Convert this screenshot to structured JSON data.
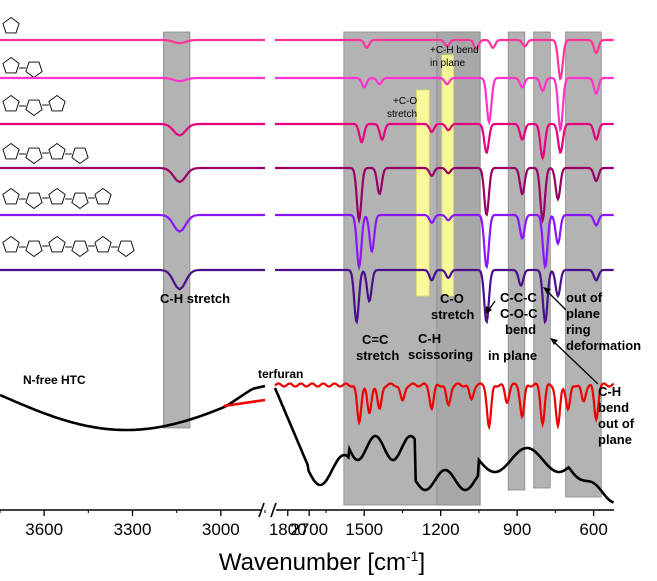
{
  "chart_data": {
    "type": "line",
    "xlabel": "Wavenumber [cm",
    "xlabel_sup": "-1",
    "xlabel_suffix": "]",
    "x_reversed": true,
    "x_axis_break": true,
    "x_segments": [
      {
        "range": [
          3750,
          2850
        ],
        "ticks": [
          3600,
          3300,
          3000,
          2700
        ]
      },
      {
        "range": [
          1850,
          520
        ],
        "ticks": [
          1800,
          1500,
          1200,
          900,
          600
        ]
      }
    ],
    "tick_labels": [
      "3600",
      "3300",
      "3000",
      "2700",
      "1800",
      "1500",
      "1200",
      "900",
      "600"
    ],
    "highlight_bands": [
      {
        "x": [
          3195,
          3105
        ],
        "color": "#a6a6a6",
        "label": "C-H stretch"
      },
      {
        "x": [
          1580,
          1045
        ],
        "color": "#a6a6a6",
        "label": "C=C stretch"
      },
      {
        "x": [
          1215,
          1045
        ],
        "color": "#a6a6a6",
        "label": "C-H scissoring"
      },
      {
        "x": [
          935,
          870
        ],
        "color": "#a6a6a6",
        "label": "C-C-C C-O-C bend in plane"
      },
      {
        "x": [
          835,
          770
        ],
        "color": "#a6a6a6",
        "label": "out of plane ring deformation"
      },
      {
        "x": [
          710,
          570
        ],
        "color": "#a6a6a6",
        "label": "C-H bend out of plane"
      },
      {
        "x": [
          1295,
          1245
        ],
        "color": "#ffff99",
        "label": "+C-O stretch"
      },
      {
        "x": [
          1195,
          1150
        ],
        "color": "#ffff99",
        "label": "+C-H bend in plane"
      }
    ],
    "annotations": {
      "ch_stretch": "C-H stretch",
      "cc_stretch_1": "C=C",
      "cc_stretch_2": "stretch",
      "co_stretch_1": "C-O",
      "co_stretch_2": "stretch",
      "ch_sciss_1": "C-H",
      "ch_sciss_2": "scissoring",
      "ccc_1": "C-C-C",
      "ccc_2": "C-O-C",
      "ccc_3": "bend",
      "ccc_4": "in plane",
      "oop_1": "out of",
      "oop_2": "plane",
      "oop_3": "ring",
      "oop_4": "deformation",
      "chb_1": "C-H",
      "chb_2": "bend",
      "chb_3": "out of",
      "chb_4": "plane",
      "plus_co_1": "+C-O",
      "plus_co_2": "stretch",
      "plus_ch_1": "+C-H bend",
      "plus_ch_2": "in plane"
    },
    "series": [
      {
        "id": "s1",
        "rings": 1,
        "color": "#ff3399",
        "peaks": [
          [
            1490,
            0.15
          ],
          [
            1175,
            0.12
          ],
          [
            1060,
            0.18
          ],
          [
            995,
            0.15
          ],
          [
            870,
            0.12
          ],
          [
            730,
            0.75
          ],
          [
            590,
            0.25
          ]
        ]
      },
      {
        "id": "s2",
        "rings": 2,
        "color": "#ff33cc",
        "peaks": [
          [
            1500,
            0.18
          ],
          [
            1440,
            0.12
          ],
          [
            1175,
            0.12
          ],
          [
            1010,
            0.85
          ],
          [
            880,
            0.18
          ],
          [
            800,
            0.25
          ],
          [
            730,
            1.0
          ],
          [
            590,
            0.3
          ]
        ]
      },
      {
        "id": "s3",
        "rings": 3,
        "color": "#e6007e",
        "peaks": [
          [
            1510,
            0.35
          ],
          [
            1430,
            0.3
          ],
          [
            1235,
            0.15
          ],
          [
            1170,
            0.12
          ],
          [
            1020,
            0.55
          ],
          [
            880,
            0.3
          ],
          [
            800,
            0.65
          ],
          [
            730,
            0.55
          ],
          [
            590,
            0.3
          ]
        ]
      },
      {
        "id": "s4",
        "rings": 4,
        "color": "#990066",
        "peaks": [
          [
            1520,
            1.0
          ],
          [
            1440,
            0.5
          ],
          [
            1235,
            0.15
          ],
          [
            1170,
            0.1
          ],
          [
            1020,
            0.9
          ],
          [
            880,
            0.5
          ],
          [
            800,
            1.0
          ],
          [
            740,
            0.6
          ],
          [
            590,
            0.25
          ]
        ]
      },
      {
        "id": "s5",
        "rings": 5,
        "color": "#8b16ff",
        "peaks": [
          [
            1520,
            1.0
          ],
          [
            1470,
            0.7
          ],
          [
            1235,
            0.15
          ],
          [
            1170,
            0.1
          ],
          [
            1020,
            1.0
          ],
          [
            880,
            0.45
          ],
          [
            790,
            1.0
          ],
          [
            740,
            0.55
          ],
          [
            590,
            0.2
          ]
        ]
      },
      {
        "id": "s6",
        "rings": 6,
        "color": "#4b0f8c",
        "peaks": [
          [
            1530,
            1.0
          ],
          [
            1480,
            0.6
          ],
          [
            1235,
            0.2
          ],
          [
            1170,
            0.15
          ],
          [
            1020,
            1.0
          ],
          [
            885,
            0.3
          ],
          [
            790,
            1.0
          ],
          [
            740,
            0.5
          ],
          [
            590,
            0.2
          ]
        ]
      }
    ],
    "terfuran": {
      "label": "terfuran",
      "color": "#ee0000"
    },
    "htc": {
      "label": "N-free HTC",
      "color": "#000000"
    }
  }
}
